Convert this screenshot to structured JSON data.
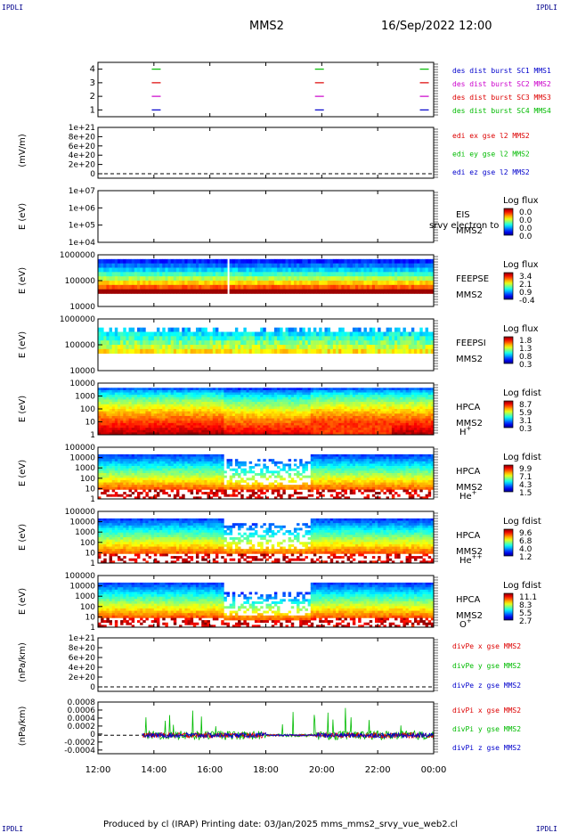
{
  "header": {
    "left_tag": "IPDLI",
    "right_tag": "IPDLI",
    "spacecraft": "MMS2",
    "datetime": "16/Sep/2022 12:00"
  },
  "footer": {
    "text": "Produced by cl (IRAP)   Printing date: 03/Jan/2025   mms_mms2_srvy_vue_web2.cl",
    "left_tag": "IPDLI",
    "right_tag": "IPDLI"
  },
  "colors": {
    "red": "#dd0000",
    "green": "#00bb00",
    "blue": "#0000cc",
    "magenta": "#cc00cc",
    "black": "#000000"
  },
  "chart_data": [
    {
      "id": "burst",
      "type": "line",
      "ylim": [
        0.5,
        4.5
      ],
      "yticks": [
        "1",
        "2",
        "3",
        "4"
      ],
      "segments": [
        {
          "y": 4,
          "color": "#00bb00",
          "x": [
            "14:05",
            "19:55",
            "23:40"
          ]
        },
        {
          "y": 3,
          "color": "#dd0000",
          "x": [
            "14:05",
            "19:55",
            "23:40"
          ]
        },
        {
          "y": 2,
          "color": "#cc00cc",
          "x": [
            "14:05",
            "19:55",
            "23:40"
          ]
        },
        {
          "y": 1,
          "color": "#0000cc",
          "x": [
            "14:05",
            "19:55",
            "23:40"
          ]
        }
      ],
      "legend": [
        {
          "text": "des dist burst SC1 MMS1",
          "color": "#0000cc"
        },
        {
          "text": "des dist burst SC2 MMS2",
          "color": "#cc00cc"
        },
        {
          "text": "des dist burst SC3 MMS3",
          "color": "#dd0000"
        },
        {
          "text": "des dist burst SC4 MMS4",
          "color": "#00bb00"
        }
      ]
    },
    {
      "id": "edi",
      "type": "line",
      "ylabel": "(mV/m)",
      "yticks": [
        "1e+21",
        "8e+20",
        "6e+20",
        "4e+20",
        "2e+20",
        "0"
      ],
      "ylim": [
        0,
        1e+21
      ],
      "dashed_zero": true,
      "legend": [
        {
          "text": "edi ex gse l2 MMS2",
          "color": "#dd0000"
        },
        {
          "text": "edi ey gse l2 MMS2",
          "color": "#00bb00"
        },
        {
          "text": "edi ez gse l2 MMS2",
          "color": "#0000cc"
        }
      ]
    },
    {
      "id": "eis",
      "type": "heatmap",
      "ylabel": "E (eV)",
      "yticks": [
        "1e+07",
        "1e+06",
        "1e+05",
        "1e+04"
      ],
      "empty": true,
      "labels": [
        "EIS",
        "MMS2"
      ],
      "overlap_text": "srvy electron to",
      "colorbar": {
        "title": "Log flux",
        "ticks": [
          "0.0",
          "0.0",
          "0.0",
          "0.0"
        ]
      }
    },
    {
      "id": "feepse",
      "type": "heatmap",
      "ylabel": "E (eV)",
      "yticks": [
        "1000000",
        "100000",
        "10000"
      ],
      "labels": [
        "FEEPSE",
        "MMS2"
      ],
      "gap_time": "16:40",
      "colorbar": {
        "title": "Log flux",
        "ticks": [
          "3.4",
          "2.1",
          "0.9",
          "-0.4"
        ]
      }
    },
    {
      "id": "feepsi",
      "type": "heatmap",
      "ylabel": "E (eV)",
      "yticks": [
        "1000000",
        "100000",
        "10000"
      ],
      "labels": [
        "FEEPSI",
        "MMS2"
      ],
      "colorbar": {
        "title": "Log flux",
        "ticks": [
          "1.8",
          "1.3",
          "0.8",
          "0.3"
        ]
      }
    },
    {
      "id": "hpca_h",
      "type": "heatmap",
      "ylabel": "E (eV)",
      "yticks": [
        "10000",
        "1000",
        "100",
        "10",
        "1"
      ],
      "labels": [
        "HPCA",
        "MMS2"
      ],
      "species": "H",
      "charge": "+",
      "colorbar": {
        "title": "Log fdist",
        "ticks": [
          "8.7",
          "5.9",
          "3.1",
          "0.3"
        ]
      }
    },
    {
      "id": "hpca_he",
      "type": "heatmap",
      "ylabel": "E (eV)",
      "yticks": [
        "100000",
        "10000",
        "1000",
        "100",
        "10",
        "1"
      ],
      "labels": [
        "HPCA",
        "MMS2"
      ],
      "species": "He",
      "charge": "+",
      "colorbar": {
        "title": "Log fdist",
        "ticks": [
          "9.9",
          "7.1",
          "4.3",
          "1.5"
        ]
      }
    },
    {
      "id": "hpca_he2",
      "type": "heatmap",
      "ylabel": "E (eV)",
      "yticks": [
        "100000",
        "10000",
        "1000",
        "100",
        "10",
        "1"
      ],
      "labels": [
        "HPCA",
        "MMS2"
      ],
      "species": "He",
      "charge": "++",
      "colorbar": {
        "title": "Log fdist",
        "ticks": [
          "9.6",
          "6.8",
          "4.0",
          "1.2"
        ]
      }
    },
    {
      "id": "hpca_o",
      "type": "heatmap",
      "ylabel": "E (eV)",
      "yticks": [
        "100000",
        "10000",
        "1000",
        "100",
        "10",
        "1"
      ],
      "labels": [
        "HPCA",
        "MMS2"
      ],
      "species": "O",
      "charge": "+",
      "colorbar": {
        "title": "Log fdist",
        "ticks": [
          "11.1",
          "8.3",
          "5.5",
          "2.7"
        ]
      }
    },
    {
      "id": "divpe",
      "type": "line",
      "ylabel": "(nPa/km)",
      "yticks": [
        "1e+21",
        "8e+20",
        "6e+20",
        "4e+20",
        "2e+20",
        "0"
      ],
      "ylim": [
        0,
        1e+21
      ],
      "dashed_zero": true,
      "legend": [
        {
          "text": "divPe x gse MMS2",
          "color": "#dd0000"
        },
        {
          "text": "divPe y gse MMS2",
          "color": "#00bb00"
        },
        {
          "text": "divPe z gse MMS2",
          "color": "#0000cc"
        }
      ]
    },
    {
      "id": "divpi",
      "type": "line",
      "ylabel": "(nPa/km)",
      "yticks": [
        "0.0008",
        "0.0006",
        "0.0004",
        "0.0002",
        "0",
        "-0.0002",
        "-0.0004"
      ],
      "ylim": [
        -0.0005,
        0.0009
      ],
      "dashed_zero": true,
      "data_start": "13:35",
      "legend": [
        {
          "text": "divPi x gse MMS2",
          "color": "#dd0000"
        },
        {
          "text": "divPi y gse MMS2",
          "color": "#00bb00"
        },
        {
          "text": "divPi z gse MMS2",
          "color": "#0000cc"
        }
      ]
    }
  ],
  "x_axis": {
    "ticks": [
      "12:00",
      "14:00",
      "16:00",
      "18:00",
      "20:00",
      "22:00",
      "00:00"
    ],
    "range_hours": [
      12,
      24
    ]
  }
}
